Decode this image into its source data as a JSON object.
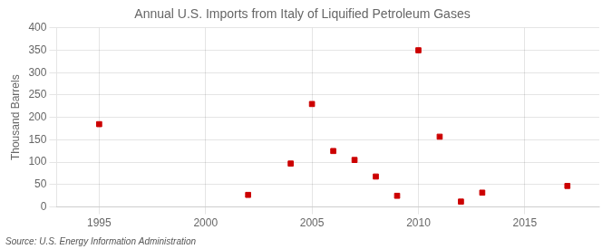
{
  "chart_data": {
    "type": "scatter",
    "title": "Annual U.S. Imports from Italy of Liquified Petroleum Gases",
    "ylabel": "Thousand Barrels",
    "annotation": "Source: U.S. Energy Information Administration",
    "x": [
      1995,
      2002,
      2004,
      2005,
      2006,
      2007,
      2008,
      2009,
      2010,
      2011,
      2012,
      2013,
      2017
    ],
    "values": [
      185,
      27,
      97,
      230,
      125,
      105,
      68,
      25,
      350,
      157,
      12,
      32,
      47
    ],
    "color": "#cc0000",
    "marker": "square",
    "xlim": [
      1993,
      2018.5
    ],
    "ylim": [
      0,
      400
    ],
    "xticks": [
      1995,
      2000,
      2005,
      2010,
      2015
    ],
    "yticks": [
      0,
      50,
      100,
      150,
      200,
      250,
      300,
      350,
      400
    ],
    "grid": true
  }
}
